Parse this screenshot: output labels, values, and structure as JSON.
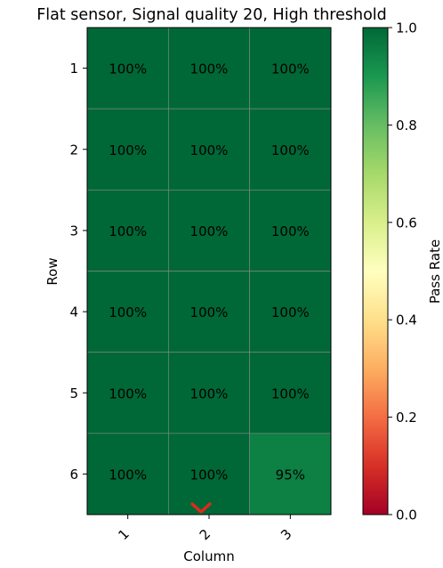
{
  "chart_data": {
    "type": "heatmap",
    "title": "Flat sensor, Signal quality 20, High threshold",
    "xlabel": "Column",
    "ylabel": "Row",
    "x_categories": [
      "1",
      "2",
      "3"
    ],
    "y_categories": [
      "1",
      "2",
      "3",
      "4",
      "5",
      "6"
    ],
    "values": [
      [
        1.0,
        1.0,
        1.0
      ],
      [
        1.0,
        1.0,
        1.0
      ],
      [
        1.0,
        1.0,
        1.0
      ],
      [
        1.0,
        1.0,
        1.0
      ],
      [
        1.0,
        1.0,
        1.0
      ],
      [
        1.0,
        1.0,
        0.95
      ]
    ],
    "cell_labels": [
      [
        "100%",
        "100%",
        "100%"
      ],
      [
        "100%",
        "100%",
        "100%"
      ],
      [
        "100%",
        "100%",
        "100%"
      ],
      [
        "100%",
        "100%",
        "100%"
      ],
      [
        "100%",
        "100%",
        "100%"
      ],
      [
        "100%",
        "100%",
        "95%"
      ]
    ],
    "colorbar": {
      "label": "Pass Rate",
      "range": [
        0.0,
        1.0
      ],
      "ticks": [
        "0.0",
        "0.2",
        "0.4",
        "0.6",
        "0.8",
        "1.0"
      ],
      "colormap": "RdYlGn"
    },
    "grid": true,
    "annotations": [
      {
        "shape": "chevron-down",
        "color": "#e8261c",
        "at_column": "2",
        "position": "bottom-edge"
      }
    ]
  }
}
